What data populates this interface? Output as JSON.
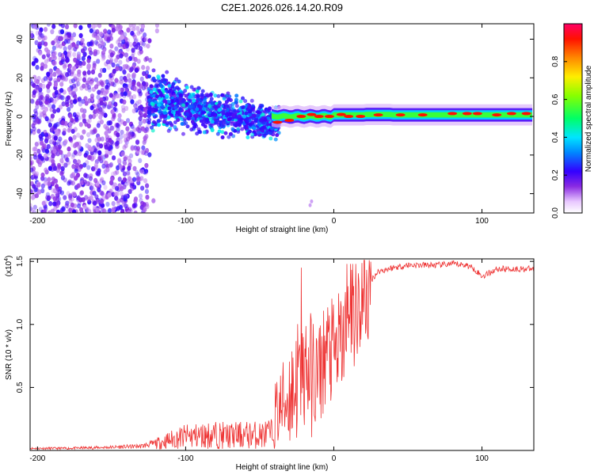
{
  "chart_data": [
    {
      "type": "heatmap",
      "title": "C2E1.2026.026.14.20.R09",
      "xlabel": "Height of straight line (km)",
      "ylabel": "Frequency (Hz)",
      "xlim": [
        -205,
        135
      ],
      "ylim": [
        -50,
        48
      ],
      "xticks": [
        -200,
        -100,
        0,
        100
      ],
      "xtick_labels": [
        "-200",
        "-100",
        "0",
        "100"
      ],
      "yticks": [
        -40,
        -20,
        0,
        20,
        40
      ],
      "ytick_labels": [
        "-40",
        "-20",
        "0",
        "20",
        "40"
      ],
      "colorbar": {
        "label": "Normalized spectral amplitude",
        "range": [
          0,
          1
        ],
        "ticks": [
          0,
          0.2,
          0.4,
          0.6,
          0.8
        ],
        "tick_labels": [
          "0.0",
          "0.2",
          "0.4",
          "0.6",
          "0.8"
        ],
        "colors": [
          "#ffffff",
          "#6a00ff",
          "#0033ff",
          "#00d0ff",
          "#00ff66",
          "#ccff00",
          "#ffcc00",
          "#ff2200",
          "#ff0066"
        ]
      },
      "description_series": [
        {
          "name": "broadband noise",
          "x_range": [
            -205,
            -125
          ],
          "y_range": [
            -50,
            48
          ],
          "level": 0.1
        },
        {
          "name": "dispersed band",
          "x_range": [
            -125,
            -40
          ],
          "y_center": [
            8,
            -5
          ],
          "level": 0.3
        },
        {
          "name": "narrow tone",
          "x_range": [
            -40,
            135
          ],
          "y_center": 0.5,
          "level": 0.9
        }
      ]
    },
    {
      "type": "line",
      "xlabel": "Height of straight line (km)",
      "ylabel": "SNR (10 * v/v)",
      "multiplier": "(x10^4)",
      "xlim": [
        -205,
        135
      ],
      "ylim": [
        0,
        1.52
      ],
      "xticks": [
        -200,
        -100,
        0,
        100
      ],
      "xtick_labels": [
        "-200",
        "-100",
        "0",
        "100"
      ],
      "yticks": [
        0.5,
        1.0,
        1.5
      ],
      "ytick_labels": [
        "0.5",
        "1.0",
        "1.5"
      ],
      "color": "#ee3333",
      "series": [
        {
          "name": "SNR",
          "x": [
            -205,
            -180,
            -150,
            -130,
            -120,
            -110,
            -100,
            -90,
            -80,
            -70,
            -60,
            -50,
            -40,
            -35,
            -30,
            -25,
            -20,
            -15,
            -10,
            -5,
            0,
            5,
            10,
            15,
            20,
            25,
            30,
            40,
            50,
            60,
            70,
            80,
            90,
            95,
            100,
            110,
            120,
            135
          ],
          "y": [
            0.02,
            0.02,
            0.03,
            0.04,
            0.07,
            0.12,
            0.16,
            0.17,
            0.18,
            0.17,
            0.18,
            0.18,
            0.2,
            0.35,
            0.55,
            0.7,
            0.8,
            0.75,
            0.7,
            0.9,
            0.85,
            0.95,
            1.05,
            1.2,
            1.3,
            1.35,
            1.42,
            1.45,
            1.47,
            1.47,
            1.47,
            1.48,
            1.47,
            1.44,
            1.38,
            1.44,
            1.44,
            1.44
          ]
        }
      ]
    }
  ],
  "axes_titles": {
    "title": "C2E1.2026.026.14.20.R09",
    "top_xlabel": "Height of straight line (km)",
    "top_ylabel": "Frequency (Hz)",
    "bot_xlabel": "Height of straight line (km)",
    "bot_ylabel": "SNR (10 * v/v)",
    "multiplier_base": "(x10",
    "multiplier_exp": "4",
    "multiplier_close": ")",
    "colorbar_label": "Normalized spectral amplitude"
  }
}
